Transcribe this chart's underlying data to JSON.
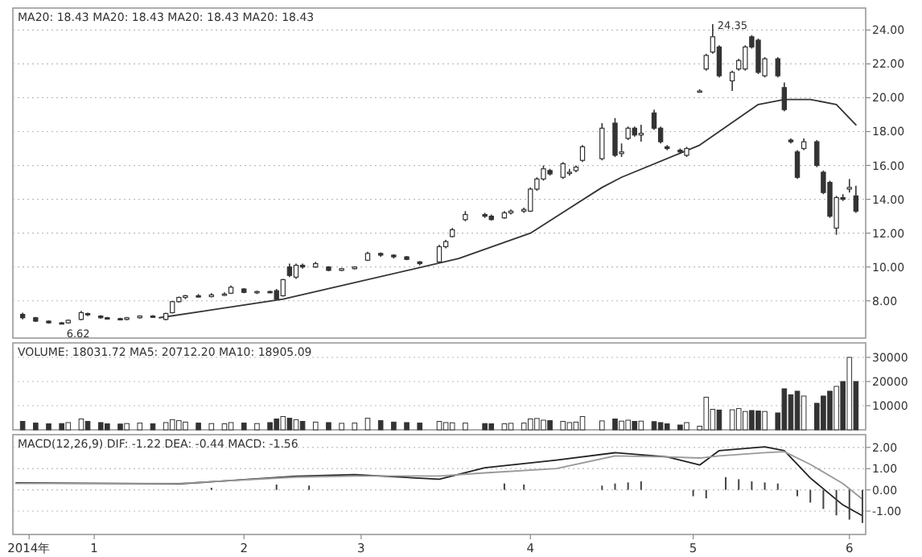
{
  "chart_data": [
    {
      "type": "candlestick",
      "title": "MA20: 18.43 MA20: 18.43 MA20: 18.43 MA20: 18.43",
      "color": "#333333",
      "grid": "y",
      "tick_labels": "y",
      "ylim": [
        5.8,
        25.3
      ],
      "yticks": [
        {
          "value": 8,
          "label": "8.00"
        },
        {
          "value": 10,
          "label": "10.00"
        },
        {
          "value": 12,
          "label": "12.00"
        },
        {
          "value": 14,
          "label": "14.00"
        },
        {
          "value": 16,
          "label": "16.00"
        },
        {
          "value": 18,
          "label": "18.00"
        },
        {
          "value": 20,
          "label": "20.00"
        },
        {
          "value": 22,
          "label": "22.00"
        },
        {
          "value": 24,
          "label": "24.00"
        }
      ],
      "categories": [
        null,
        null,
        null,
        null,
        null,
        null,
        null,
        null,
        null,
        null,
        null,
        null,
        null,
        null,
        null,
        null,
        null,
        null,
        null,
        null,
        null,
        null,
        null,
        null,
        null,
        null,
        null,
        null,
        null,
        null,
        null,
        null,
        null,
        null,
        null,
        null,
        null,
        null,
        null,
        null,
        null,
        null,
        null,
        null,
        null,
        null,
        null,
        null,
        null,
        null,
        null,
        null,
        null,
        null,
        null,
        null,
        null,
        null,
        null,
        null,
        null,
        null,
        null,
        null,
        null,
        null,
        null,
        null,
        null,
        null,
        null,
        null,
        null,
        null,
        null,
        null,
        null,
        null,
        null,
        null,
        null,
        null,
        null,
        null,
        null,
        null,
        null,
        null,
        null,
        null,
        null,
        null,
        null,
        null,
        null,
        null,
        null,
        null,
        null,
        null,
        null,
        null,
        null,
        null,
        null,
        null,
        null,
        null,
        null,
        null,
        null,
        null,
        null,
        null,
        null,
        null,
        null,
        null,
        null,
        null,
        null,
        null,
        null,
        null,
        null,
        null,
        null,
        null,
        null,
        null,
        null
      ],
      "ohlc": [
        null,
        [
          7.2,
          7.3,
          6.9,
          7.0
        ],
        null,
        [
          7.0,
          7.05,
          6.75,
          6.8
        ],
        null,
        [
          6.8,
          6.85,
          6.65,
          6.7
        ],
        null,
        [
          6.7,
          6.75,
          6.62,
          6.65
        ],
        [
          6.7,
          6.9,
          6.65,
          6.85
        ],
        null,
        [
          6.9,
          7.4,
          6.85,
          7.3
        ],
        [
          7.25,
          7.3,
          7.1,
          7.2
        ],
        null,
        [
          7.1,
          7.15,
          6.95,
          7.0
        ],
        [
          7.0,
          7.05,
          6.9,
          6.95
        ],
        null,
        [
          6.95,
          7.0,
          6.85,
          6.9
        ],
        [
          6.9,
          7.05,
          6.85,
          7.0
        ],
        null,
        [
          7.0,
          7.15,
          6.95,
          7.1
        ],
        null,
        [
          7.1,
          7.15,
          7.0,
          7.05
        ],
        null,
        [
          6.9,
          7.3,
          6.85,
          7.25
        ],
        [
          7.3,
          8.0,
          7.25,
          7.95
        ],
        [
          7.95,
          8.25,
          7.9,
          8.2
        ],
        [
          8.2,
          8.35,
          8.1,
          8.3
        ],
        null,
        [
          8.3,
          8.4,
          8.2,
          8.25
        ],
        null,
        [
          8.25,
          8.45,
          8.2,
          8.35
        ],
        null,
        [
          8.35,
          8.5,
          8.3,
          8.4
        ],
        [
          8.45,
          8.9,
          8.4,
          8.8
        ],
        null,
        [
          8.7,
          8.75,
          8.45,
          8.5
        ],
        null,
        [
          8.5,
          8.6,
          8.4,
          8.55
        ],
        null,
        [
          8.55,
          8.6,
          8.45,
          8.5
        ],
        [
          8.6,
          8.7,
          8.05,
          8.1
        ],
        [
          8.3,
          9.3,
          8.25,
          9.25
        ],
        [
          10.0,
          10.2,
          9.4,
          9.5
        ],
        [
          9.4,
          10.2,
          9.3,
          10.1
        ],
        [
          10.1,
          10.2,
          9.9,
          10.0
        ],
        null,
        [
          10.0,
          10.3,
          9.95,
          10.2
        ],
        null,
        [
          10.0,
          10.05,
          9.75,
          9.8
        ],
        null,
        [
          9.8,
          9.95,
          9.75,
          9.9
        ],
        null,
        [
          9.9,
          10.05,
          9.85,
          10.0
        ],
        null,
        [
          10.4,
          10.9,
          10.35,
          10.8
        ],
        null,
        [
          10.8,
          10.85,
          10.6,
          10.7
        ],
        null,
        [
          10.7,
          10.75,
          10.5,
          10.6
        ],
        null,
        [
          10.6,
          10.65,
          10.4,
          10.45
        ],
        null,
        [
          10.3,
          10.35,
          10.1,
          10.2
        ],
        null,
        null,
        [
          10.3,
          11.3,
          10.25,
          11.2
        ],
        [
          11.2,
          11.6,
          11.1,
          11.5
        ],
        [
          11.8,
          12.3,
          11.75,
          12.2
        ],
        null,
        [
          12.8,
          13.3,
          12.7,
          13.1
        ],
        null,
        null,
        [
          13.1,
          13.2,
          12.9,
          13.0
        ],
        [
          13.0,
          13.1,
          12.75,
          12.8
        ],
        null,
        [
          12.9,
          13.3,
          12.85,
          13.2
        ],
        [
          13.2,
          13.4,
          13.1,
          13.3
        ],
        null,
        [
          13.3,
          13.5,
          13.2,
          13.4
        ],
        [
          13.3,
          14.7,
          13.25,
          14.6
        ],
        [
          14.6,
          15.3,
          14.5,
          15.2
        ],
        [
          15.2,
          16.0,
          15.1,
          15.8
        ],
        [
          15.7,
          15.8,
          15.4,
          15.5
        ],
        null,
        [
          15.3,
          16.2,
          15.2,
          16.1
        ],
        [
          15.6,
          15.8,
          15.4,
          15.6
        ],
        [
          15.7,
          16.0,
          15.6,
          15.9
        ],
        [
          16.3,
          17.2,
          16.2,
          17.1
        ],
        null,
        null,
        [
          16.4,
          18.5,
          16.3,
          18.2
        ],
        null,
        [
          18.5,
          18.8,
          16.5,
          16.6
        ],
        [
          16.7,
          17.3,
          16.5,
          16.8
        ],
        [
          17.6,
          18.3,
          17.5,
          18.2
        ],
        [
          18.2,
          18.3,
          17.7,
          17.8
        ],
        [
          17.8,
          18.4,
          17.4,
          17.9
        ],
        null,
        [
          19.1,
          19.3,
          18.1,
          18.2
        ],
        [
          18.2,
          18.3,
          17.3,
          17.4
        ],
        [
          17.1,
          17.2,
          16.9,
          17.0
        ],
        null,
        [
          16.9,
          17.0,
          16.7,
          16.8
        ],
        [
          16.6,
          17.1,
          16.5,
          17.0
        ],
        null,
        [
          20.4,
          20.5,
          20.3,
          20.4
        ],
        [
          21.7,
          22.6,
          21.6,
          22.5
        ],
        [
          22.7,
          24.35,
          22.6,
          23.6
        ],
        [
          23.0,
          23.1,
          21.2,
          21.3
        ],
        null,
        [
          21.0,
          21.6,
          20.4,
          21.5
        ],
        [
          21.7,
          22.3,
          21.6,
          22.2
        ],
        [
          21.7,
          23.1,
          21.6,
          23.0
        ],
        [
          23.6,
          23.7,
          22.9,
          23.0
        ],
        [
          23.4,
          23.5,
          21.4,
          21.5
        ],
        [
          21.3,
          22.4,
          21.2,
          22.3
        ],
        null,
        [
          22.3,
          22.4,
          21.2,
          21.3
        ],
        [
          20.6,
          20.9,
          19.2,
          19.3
        ],
        [
          17.5,
          17.6,
          17.3,
          17.4
        ],
        [
          16.8,
          16.9,
          15.2,
          15.3
        ],
        [
          17.0,
          17.6,
          16.9,
          17.4
        ],
        null,
        [
          17.4,
          17.5,
          15.9,
          16.0
        ],
        [
          15.6,
          15.7,
          14.3,
          14.4
        ],
        [
          15.0,
          15.1,
          12.9,
          13.0
        ],
        [
          12.3,
          14.2,
          11.9,
          14.1
        ],
        [
          14.1,
          14.3,
          13.9,
          14.0
        ],
        [
          14.6,
          15.2,
          14.4,
          14.7
        ],
        [
          14.2,
          14.8,
          13.2,
          13.3
        ],
        null
      ],
      "series": [
        {
          "type": "line",
          "color": "#333333",
          "values": [
            null,
            null,
            null,
            null,
            null,
            null,
            null,
            null,
            null,
            null,
            null,
            null,
            null,
            null,
            null,
            null,
            null,
            null,
            null,
            null,
            null,
            null,
            7.0,
            null,
            null,
            null,
            null,
            null,
            null,
            null,
            null,
            null,
            null,
            null,
            null,
            null,
            null,
            null,
            null,
            null,
            null,
            8.1,
            null,
            null,
            null,
            null,
            null,
            null,
            null,
            null,
            null,
            null,
            null,
            null,
            null,
            null,
            null,
            null,
            null,
            null,
            null,
            null,
            null,
            null,
            null,
            null,
            null,
            null,
            10.5,
            null,
            null,
            null,
            null,
            null,
            null,
            null,
            null,
            null,
            null,
            12.0,
            null,
            null,
            null,
            null,
            null,
            null,
            null,
            null,
            null,
            null,
            14.7,
            null,
            null,
            15.3,
            null,
            null,
            null,
            null,
            null,
            null,
            null,
            null,
            null,
            null,
            null,
            17.2,
            null,
            null,
            null,
            null,
            null,
            null,
            null,
            null,
            19.6,
            null,
            null,
            null,
            19.9,
            null,
            null,
            null,
            19.9,
            null,
            null,
            null,
            19.6,
            null,
            null,
            18.4,
            null
          ]
        }
      ],
      "annotations": [
        "24.35",
        "6.62"
      ]
    },
    {
      "type": "bar",
      "title": "VOLUME: 18031.72 MA5: 20712.20 MA10: 18905.09",
      "grid": "y",
      "tick_labels": "y",
      "ylim": [
        0,
        36000
      ],
      "yticks": [
        10000,
        20000,
        30000
      ],
      "categories": [
        null,
        null,
        null,
        null,
        null,
        null,
        null,
        null,
        null,
        null,
        null,
        null,
        null,
        null,
        null,
        null,
        null,
        null,
        null,
        null,
        null,
        null,
        null,
        null,
        null,
        null,
        null,
        null,
        null,
        null,
        null,
        null,
        null,
        null,
        null,
        null,
        null,
        null,
        null,
        null,
        null,
        null,
        null,
        null,
        null,
        null,
        null,
        null,
        null,
        null,
        null,
        null,
        null,
        null,
        null,
        null,
        null,
        null,
        null,
        null,
        null,
        null,
        null,
        null,
        null,
        null,
        null,
        null,
        null,
        null,
        null,
        null,
        null,
        null,
        null,
        null,
        null,
        null,
        null,
        null,
        null,
        null,
        null,
        null,
        null,
        null,
        null,
        null,
        null,
        null,
        null,
        null,
        null,
        null,
        null,
        null,
        null,
        null,
        null,
        null,
        null,
        null,
        null,
        null,
        null,
        null,
        null,
        null,
        null,
        null,
        null,
        null,
        null,
        null,
        null,
        null,
        null,
        null,
        null,
        null,
        null,
        null,
        null,
        null,
        null,
        null,
        null,
        null,
        null,
        null,
        null
      ],
      "values": [
        null,
        3500,
        null,
        2800,
        null,
        2500,
        null,
        2600,
        3000,
        null,
        4500,
        3500,
        null,
        3000,
        2500,
        null,
        2400,
        2600,
        null,
        2800,
        null,
        2500,
        null,
        3000,
        4200,
        3800,
        3200,
        null,
        2800,
        null,
        2600,
        null,
        2500,
        3000,
        null,
        2800,
        null,
        2600,
        null,
        3000,
        4500,
        5500,
        4800,
        4200,
        3500,
        null,
        3200,
        null,
        3000,
        null,
        2700,
        null,
        2800,
        null,
        4800,
        null,
        3800,
        null,
        3200,
        null,
        3000,
        null,
        2800,
        null,
        null,
        3500,
        3000,
        2900,
        null,
        2800,
        null,
        null,
        2600,
        2500,
        null,
        2500,
        2700,
        null,
        2800,
        4500,
        4700,
        4000,
        3800,
        null,
        3500,
        3000,
        3200,
        5500,
        null,
        null,
        3700,
        null,
        4500,
        3600,
        4000,
        3500,
        3600,
        null,
        3400,
        3000,
        2500,
        null,
        2000,
        3000,
        null,
        1500,
        13500,
        8500,
        8200,
        null,
        8300,
        8800,
        7600,
        8000,
        7800,
        7600,
        null,
        7000,
        17000,
        14500,
        16000,
        14000,
        null,
        11000,
        14000,
        16000,
        18000,
        20000,
        30000,
        20000,
        null
      ],
      "colors": [
        null,
        "#333333",
        null,
        "#333333",
        null,
        "#333333",
        null,
        "#333333",
        "#ffffff",
        null,
        "#ffffff",
        "#333333",
        null,
        "#333333",
        "#333333",
        null,
        "#333333",
        "#ffffff",
        null,
        "#ffffff",
        null,
        "#333333",
        null,
        "#ffffff",
        "#ffffff",
        "#ffffff",
        "#ffffff",
        null,
        "#333333",
        null,
        "#ffffff",
        null,
        "#ffffff",
        "#ffffff",
        null,
        "#333333",
        null,
        "#ffffff",
        null,
        "#333333",
        "#333333",
        "#ffffff",
        "#333333",
        "#ffffff",
        "#333333",
        null,
        "#ffffff",
        null,
        "#333333",
        null,
        "#ffffff",
        null,
        "#ffffff",
        null,
        "#ffffff",
        null,
        "#333333",
        null,
        "#333333",
        null,
        "#333333",
        null,
        "#333333",
        null,
        null,
        "#ffffff",
        "#ffffff",
        "#ffffff",
        null,
        "#ffffff",
        null,
        null,
        "#333333",
        "#333333",
        null,
        "#ffffff",
        "#ffffff",
        null,
        "#ffffff",
        "#ffffff",
        "#ffffff",
        "#ffffff",
        "#333333",
        null,
        "#ffffff",
        "#ffffff",
        "#ffffff",
        "#ffffff",
        null,
        null,
        "#ffffff",
        null,
        "#333333",
        "#ffffff",
        "#ffffff",
        "#333333",
        "#ffffff",
        null,
        "#333333",
        "#333333",
        "#333333",
        null,
        "#333333",
        "#ffffff",
        null,
        "#ffffff",
        "#ffffff",
        "#ffffff",
        "#333333",
        null,
        "#ffffff",
        "#ffffff",
        "#ffffff",
        "#333333",
        "#333333",
        "#ffffff",
        null,
        "#333333",
        "#333333",
        "#333333",
        "#333333",
        "#ffffff",
        null,
        "#333333",
        "#333333",
        "#333333",
        "#ffffff",
        "#333333",
        "#ffffff",
        "#333333",
        null
      ]
    },
    {
      "type": "line",
      "title": "MACD(12,26,9) DIF: -1.22 DEA: -0.44 MACD: -1.56",
      "grid": "y",
      "ylim": [
        -2.1,
        2.6
      ],
      "yticks": [
        {
          "value": -1,
          "label": "-1.00"
        },
        {
          "value": 0,
          "label": "0.00"
        },
        {
          "value": 1,
          "label": "1.00"
        },
        {
          "value": 2,
          "label": "2.00"
        }
      ],
      "categories": [
        null,
        null,
        "2014年",
        null,
        null,
        null,
        null,
        null,
        null,
        null,
        null,
        null,
        "1",
        null,
        null,
        null,
        null,
        null,
        null,
        null,
        null,
        null,
        null,
        null,
        null,
        null,
        null,
        null,
        null,
        null,
        null,
        null,
        null,
        null,
        null,
        "2",
        null,
        null,
        null,
        null,
        null,
        null,
        null,
        null,
        null,
        null,
        null,
        null,
        null,
        null,
        null,
        null,
        null,
        "3",
        null,
        null,
        null,
        null,
        null,
        null,
        null,
        null,
        null,
        null,
        null,
        null,
        null,
        null,
        null,
        null,
        null,
        null,
        null,
        null,
        null,
        null,
        null,
        null,
        null,
        "4",
        null,
        null,
        null,
        null,
        null,
        null,
        null,
        null,
        null,
        null,
        null,
        null,
        null,
        null,
        null,
        null,
        null,
        null,
        null,
        null,
        null,
        null,
        null,
        null,
        "5",
        null,
        null,
        null,
        null,
        null,
        null,
        null,
        null,
        null,
        null,
        null,
        null,
        null,
        null,
        null,
        null,
        null,
        null,
        null,
        null,
        null,
        null,
        null,
        "6",
        null,
        null
      ],
      "series": [
        {
          "color": "#222222",
          "values": [
            0.33,
            null,
            null,
            null,
            null,
            null,
            null,
            null,
            null,
            null,
            null,
            null,
            null,
            null,
            null,
            null,
            null,
            null,
            null,
            null,
            null,
            null,
            null,
            null,
            null,
            0.28,
            null,
            null,
            null,
            null,
            null,
            null,
            null,
            null,
            null,
            null,
            null,
            null,
            null,
            null,
            null,
            null,
            null,
            0.64,
            null,
            null,
            null,
            null,
            null,
            null,
            null,
            null,
            0.72,
            null,
            null,
            null,
            null,
            null,
            null,
            null,
            null,
            null,
            null,
            null,
            null,
            0.5,
            null,
            null,
            null,
            null,
            null,
            null,
            1.04,
            null,
            null,
            null,
            null,
            null,
            null,
            null,
            null,
            null,
            null,
            1.4,
            null,
            null,
            null,
            null,
            null,
            null,
            null,
            null,
            1.75,
            null,
            null,
            null,
            null,
            null,
            null,
            null,
            1.55,
            null,
            null,
            null,
            null,
            1.17,
            null,
            null,
            1.85,
            null,
            null,
            null,
            null,
            null,
            null,
            2.03,
            null,
            null,
            1.85,
            null,
            null,
            null,
            0.56,
            null,
            null,
            null,
            null,
            -0.71,
            null,
            null,
            -1.22
          ]
        },
        {
          "color": "#999999",
          "values": [
            0.3,
            null,
            null,
            null,
            null,
            null,
            null,
            null,
            null,
            null,
            null,
            null,
            null,
            null,
            null,
            null,
            null,
            null,
            null,
            null,
            null,
            null,
            null,
            null,
            null,
            0.3,
            null,
            null,
            null,
            null,
            null,
            null,
            null,
            null,
            null,
            null,
            null,
            null,
            null,
            null,
            null,
            null,
            null,
            0.6,
            null,
            null,
            null,
            null,
            null,
            null,
            null,
            null,
            0.65,
            null,
            null,
            null,
            null,
            null,
            null,
            null,
            null,
            null,
            null,
            null,
            null,
            0.65,
            null,
            null,
            null,
            null,
            null,
            null,
            0.8,
            null,
            null,
            null,
            null,
            null,
            null,
            null,
            null,
            null,
            null,
            1.0,
            null,
            null,
            null,
            null,
            null,
            null,
            null,
            null,
            1.6,
            null,
            null,
            null,
            null,
            null,
            null,
            null,
            1.55,
            null,
            null,
            null,
            null,
            1.5,
            null,
            null,
            1.6,
            null,
            null,
            null,
            null,
            null,
            null,
            1.75,
            null,
            null,
            1.8,
            null,
            null,
            null,
            1.2,
            null,
            null,
            null,
            null,
            0.3,
            null,
            null,
            -0.44
          ]
        },
        {
          "type": "bar",
          "color": "#444444",
          "values": [
            null,
            null,
            null,
            null,
            null,
            null,
            null,
            null,
            null,
            null,
            null,
            null,
            null,
            null,
            null,
            null,
            null,
            null,
            null,
            null,
            null,
            null,
            null,
            null,
            null,
            null,
            null,
            null,
            null,
            null,
            0.1,
            null,
            null,
            null,
            null,
            null,
            null,
            null,
            null,
            null,
            0.25,
            null,
            null,
            null,
            null,
            0.2,
            null,
            null,
            null,
            null,
            null,
            null,
            null,
            null,
            null,
            null,
            null,
            null,
            null,
            null,
            null,
            null,
            null,
            null,
            null,
            null,
            null,
            null,
            null,
            null,
            null,
            null,
            null,
            null,
            null,
            0.3,
            null,
            null,
            0.25,
            null,
            null,
            null,
            null,
            null,
            null,
            null,
            null,
            null,
            null,
            null,
            0.2,
            null,
            0.3,
            null,
            0.35,
            null,
            0.4,
            null,
            null,
            null,
            null,
            null,
            null,
            null,
            -0.3,
            null,
            -0.4,
            null,
            null,
            0.6,
            null,
            0.5,
            null,
            0.4,
            null,
            0.35,
            null,
            0.3,
            null,
            null,
            -0.3,
            null,
            -0.6,
            null,
            -0.9,
            null,
            -1.2,
            null,
            -1.4,
            null,
            -1.56
          ]
        }
      ]
    }
  ]
}
